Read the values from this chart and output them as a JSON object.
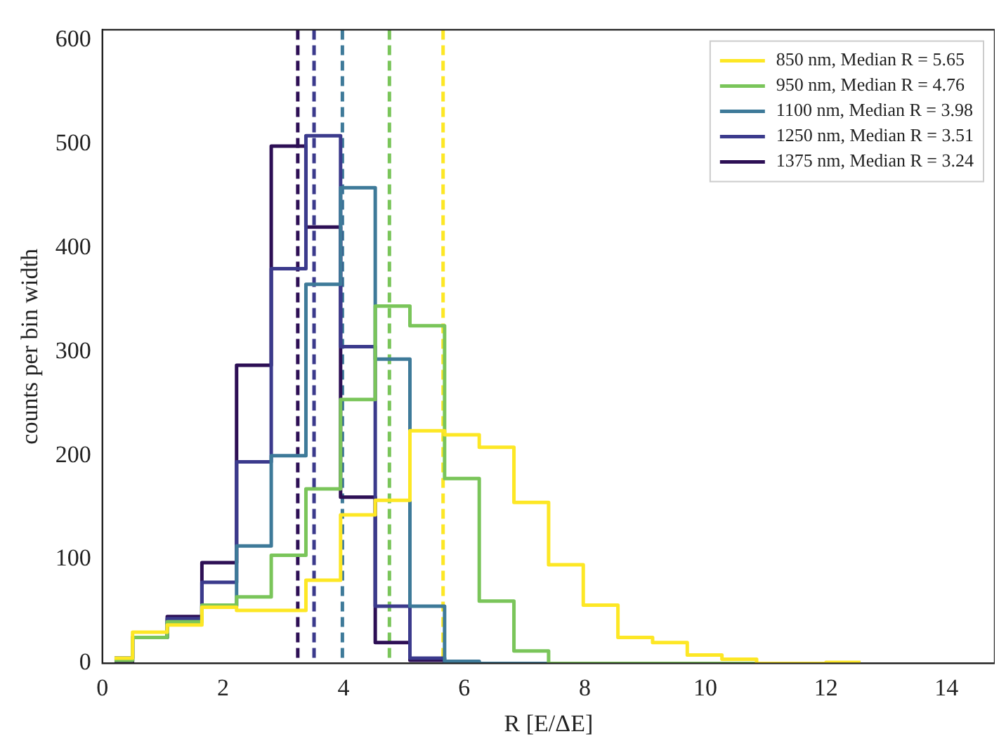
{
  "chart_data": {
    "type": "histogram",
    "xlabel": "R [E/ΔE]",
    "ylabel": "counts per bin width",
    "bins": [
      0.2,
      0.5,
      1.075,
      1.65,
      2.225,
      2.8,
      3.375,
      3.95,
      4.525,
      5.1,
      5.675,
      6.25,
      6.825,
      7.4,
      7.975,
      8.55,
      9.125,
      9.7,
      10.275,
      10.85,
      11.425,
      12.0,
      12.575
    ],
    "series": [
      {
        "name": "850 nm, Median R = 5.65",
        "color": "#fde725",
        "values": [
          5,
          30,
          37,
          54,
          51,
          51,
          80,
          143,
          157,
          224,
          220,
          208,
          155,
          95,
          56,
          25,
          20,
          8,
          4,
          0,
          0,
          1
        ]
      },
      {
        "name": "950 nm, Median R = 4.76",
        "color": "#7ac55a",
        "values": [
          3,
          25,
          40,
          56,
          64,
          104,
          168,
          254,
          344,
          325,
          178,
          60,
          12,
          0,
          0,
          0,
          0,
          0,
          0,
          0,
          0,
          0
        ]
      },
      {
        "name": "1100 nm, Median R = 3.98",
        "color": "#3e7a99",
        "values": [
          5,
          25,
          40,
          55,
          113,
          200,
          365,
          458,
          293,
          55,
          2,
          0,
          0,
          0,
          0,
          0,
          0,
          0,
          0,
          0,
          0,
          0
        ]
      },
      {
        "name": "1250 nm, Median R = 3.51",
        "color": "#3b3a8c",
        "values": [
          5,
          25,
          43,
          78,
          194,
          380,
          508,
          305,
          55,
          5,
          0,
          0,
          0,
          0,
          0,
          0,
          0,
          0,
          0,
          0,
          0,
          0
        ]
      },
      {
        "name": "1375 nm, Median R = 3.24",
        "color": "#2d0f55",
        "values": [
          2,
          25,
          45,
          97,
          287,
          498,
          420,
          160,
          20,
          3,
          0,
          0,
          0,
          0,
          0,
          0,
          0,
          0,
          0,
          0,
          0,
          0
        ]
      }
    ],
    "ref_lines": [
      {
        "axis": "x",
        "value": 5.65,
        "color": "#fde725",
        "line_style": "dashed"
      },
      {
        "axis": "x",
        "value": 4.76,
        "color": "#7ac55a",
        "line_style": "dashed"
      },
      {
        "axis": "x",
        "value": 3.98,
        "color": "#3e7a99",
        "line_style": "dashed"
      },
      {
        "axis": "x",
        "value": 3.51,
        "color": "#3b3a8c",
        "line_style": "dashed"
      },
      {
        "axis": "x",
        "value": 3.24,
        "color": "#2d0f55",
        "line_style": "dashed"
      }
    ],
    "xlim": [
      0,
      14.8
    ],
    "xticks": [
      0,
      2,
      4,
      6,
      8,
      10,
      12,
      14
    ],
    "ylim": [
      0,
      610
    ],
    "yticks": [
      0,
      100,
      200,
      300,
      400,
      500,
      600
    ],
    "grid": false,
    "legend": "top right"
  }
}
